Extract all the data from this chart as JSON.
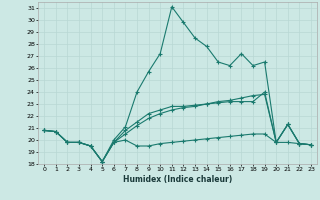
{
  "xlabel": "Humidex (Indice chaleur)",
  "background_color": "#cce8e4",
  "line_color": "#1a7a6e",
  "grid_color": "#b8d8d4",
  "xlim": [
    -0.5,
    23.5
  ],
  "ylim": [
    18,
    31.5
  ],
  "yticks": [
    18,
    19,
    20,
    21,
    22,
    23,
    24,
    25,
    26,
    27,
    28,
    29,
    30,
    31
  ],
  "xticks": [
    0,
    1,
    2,
    3,
    4,
    5,
    6,
    7,
    8,
    9,
    10,
    11,
    12,
    13,
    14,
    15,
    16,
    17,
    18,
    19,
    20,
    21,
    22,
    23
  ],
  "lines": [
    {
      "x": [
        0,
        1,
        2,
        3,
        4,
        5,
        6,
        7,
        8,
        9,
        10,
        11,
        12,
        13,
        14,
        15,
        16,
        17,
        18,
        19,
        20,
        21,
        22,
        23
      ],
      "y": [
        20.8,
        20.7,
        19.8,
        19.8,
        19.5,
        18.2,
        19.8,
        20.0,
        19.5,
        19.5,
        19.7,
        19.8,
        19.9,
        20.0,
        20.1,
        20.2,
        20.3,
        20.4,
        20.5,
        20.5,
        19.8,
        19.8,
        19.7,
        19.6
      ]
    },
    {
      "x": [
        0,
        1,
        2,
        3,
        4,
        5,
        6,
        7,
        8,
        9,
        10,
        11,
        12,
        13,
        14,
        15,
        16,
        17,
        18,
        19,
        20,
        21,
        22,
        23
      ],
      "y": [
        20.8,
        20.7,
        19.8,
        19.8,
        19.5,
        18.2,
        19.8,
        20.5,
        21.2,
        21.8,
        22.2,
        22.5,
        22.7,
        22.8,
        23.0,
        23.2,
        23.3,
        23.5,
        23.7,
        23.8,
        19.8,
        21.3,
        19.7,
        19.6
      ]
    },
    {
      "x": [
        0,
        1,
        2,
        3,
        4,
        5,
        6,
        7,
        8,
        9,
        10,
        11,
        12,
        13,
        14,
        15,
        16,
        17,
        18,
        19,
        20,
        21,
        22,
        23
      ],
      "y": [
        20.8,
        20.7,
        19.8,
        19.8,
        19.5,
        18.2,
        19.8,
        20.8,
        21.5,
        22.2,
        22.5,
        22.8,
        22.8,
        22.9,
        23.0,
        23.1,
        23.2,
        23.2,
        23.2,
        24.0,
        19.8,
        21.3,
        19.7,
        19.6
      ]
    },
    {
      "x": [
        0,
        1,
        2,
        3,
        4,
        5,
        6,
        7,
        8,
        9,
        10,
        11,
        12,
        13,
        14,
        15,
        16,
        17,
        18,
        19,
        20,
        21,
        22,
        23
      ],
      "y": [
        20.8,
        20.7,
        19.8,
        19.8,
        19.5,
        18.2,
        20.0,
        21.1,
        24.0,
        25.7,
        27.2,
        31.1,
        29.8,
        28.5,
        27.8,
        26.5,
        26.2,
        27.2,
        26.2,
        26.5,
        19.8,
        21.3,
        19.7,
        19.6
      ]
    }
  ]
}
